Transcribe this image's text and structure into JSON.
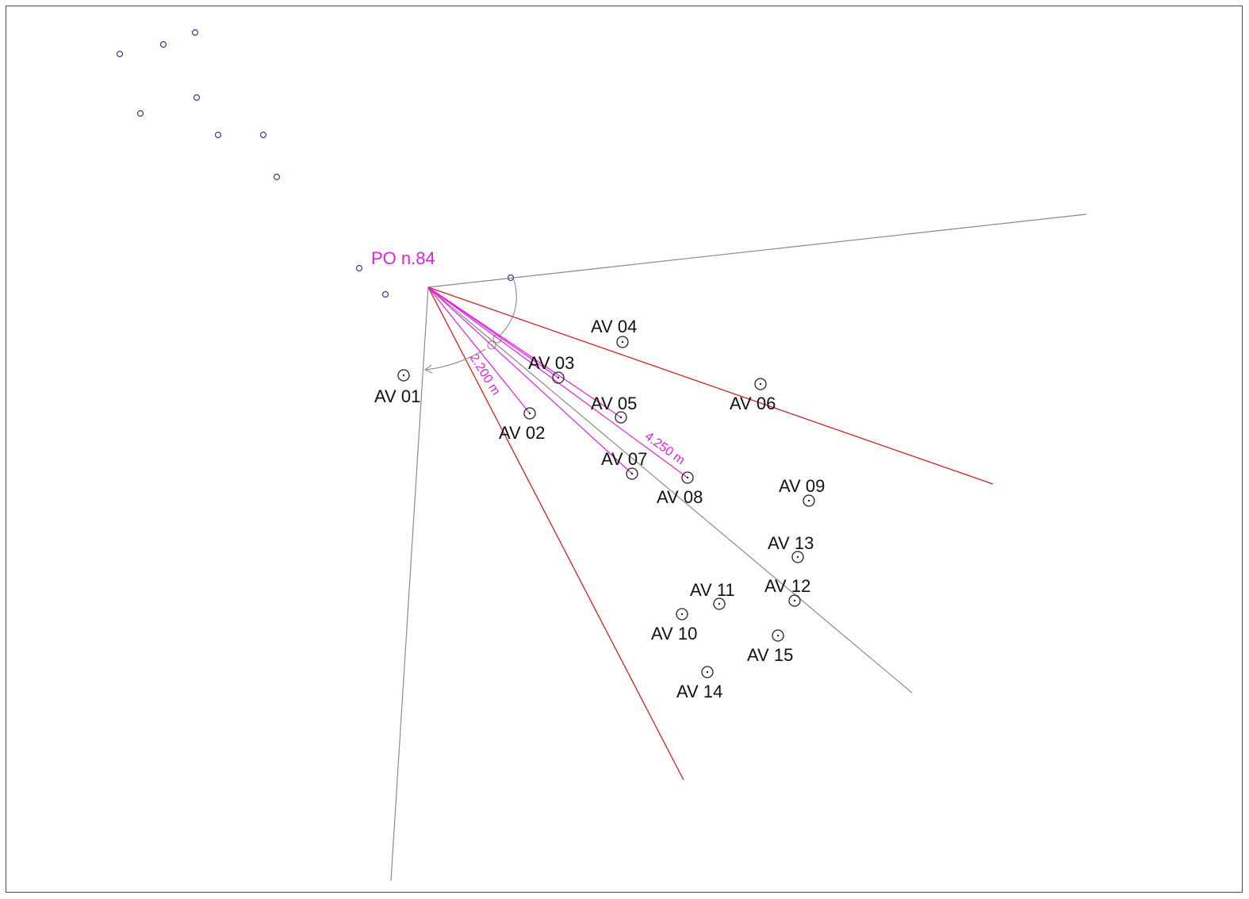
{
  "origin": {
    "label": "PO n.84"
  },
  "dimensions": [
    {
      "label": "2.200 m"
    },
    {
      "label": "4.250 m"
    }
  ],
  "turbines": [
    {
      "label": "AV 01"
    },
    {
      "label": "AV 02"
    },
    {
      "label": "AV 03"
    },
    {
      "label": "AV 04"
    },
    {
      "label": "AV 05"
    },
    {
      "label": "AV 06"
    },
    {
      "label": "AV 07"
    },
    {
      "label": "AV 08"
    },
    {
      "label": "AV 09"
    },
    {
      "label": "AV 10"
    },
    {
      "label": "AV 11"
    },
    {
      "label": "AV 12"
    },
    {
      "label": "AV 13"
    },
    {
      "label": "AV 14"
    },
    {
      "label": "AV 15"
    }
  ],
  "colors": {
    "boundary_line": "#8a8a8a",
    "sector_line": "#cc2222",
    "dimension": "#e020e0",
    "marker": "#3a3a8a",
    "text": "#111111"
  }
}
